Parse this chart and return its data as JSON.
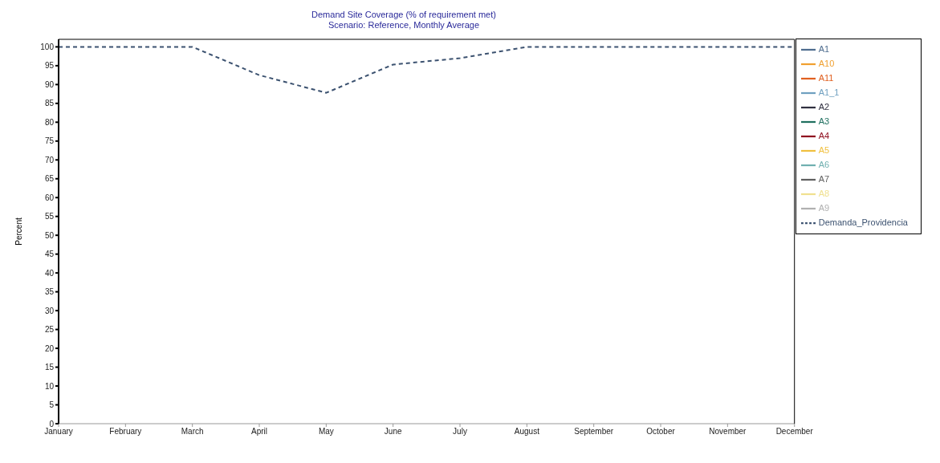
{
  "chart_data": {
    "type": "line",
    "title": "Demand Site Coverage (% of requirement met)",
    "subtitle": "Scenario: Reference,  Monthly Average",
    "ylabel": "Percent",
    "categories": [
      "January",
      "February",
      "March",
      "April",
      "May",
      "June",
      "July",
      "August",
      "September",
      "October",
      "November",
      "December"
    ],
    "ylim": [
      0,
      102
    ],
    "yticks": [
      0,
      5,
      10,
      15,
      20,
      25,
      30,
      35,
      40,
      45,
      50,
      55,
      60,
      65,
      70,
      75,
      80,
      85,
      90,
      95,
      100
    ],
    "grid": false,
    "legend": "top right",
    "marker": "none",
    "series": [
      {
        "name": "A1",
        "color": "#4f6d8f",
        "line_style": "solid",
        "values": [
          null,
          null,
          null,
          null,
          null,
          null,
          null,
          null,
          null,
          null,
          null,
          null
        ]
      },
      {
        "name": "A10",
        "color": "#f0a030",
        "line_style": "solid",
        "values": [
          null,
          null,
          null,
          null,
          null,
          null,
          null,
          null,
          null,
          null,
          null,
          null
        ]
      },
      {
        "name": "A11",
        "color": "#e06020",
        "line_style": "solid",
        "values": [
          null,
          null,
          null,
          null,
          null,
          null,
          null,
          null,
          null,
          null,
          null,
          null
        ]
      },
      {
        "name": "A1_1",
        "color": "#6fa0c0",
        "line_style": "solid",
        "values": [
          null,
          null,
          null,
          null,
          null,
          null,
          null,
          null,
          null,
          null,
          null,
          null
        ]
      },
      {
        "name": "A2",
        "color": "#303040",
        "line_style": "solid",
        "values": [
          null,
          null,
          null,
          null,
          null,
          null,
          null,
          null,
          null,
          null,
          null,
          null
        ]
      },
      {
        "name": "A3",
        "color": "#207060",
        "line_style": "solid",
        "values": [
          null,
          null,
          null,
          null,
          null,
          null,
          null,
          null,
          null,
          null,
          null,
          null
        ]
      },
      {
        "name": "A4",
        "color": "#901020",
        "line_style": "solid",
        "values": [
          null,
          null,
          null,
          null,
          null,
          null,
          null,
          null,
          null,
          null,
          null,
          null
        ]
      },
      {
        "name": "A5",
        "color": "#f0c040",
        "line_style": "solid",
        "values": [
          null,
          null,
          null,
          null,
          null,
          null,
          null,
          null,
          null,
          null,
          null,
          null
        ]
      },
      {
        "name": "A6",
        "color": "#70b0b0",
        "line_style": "solid",
        "values": [
          null,
          null,
          null,
          null,
          null,
          null,
          null,
          null,
          null,
          null,
          null,
          null
        ]
      },
      {
        "name": "A7",
        "color": "#606060",
        "line_style": "solid",
        "values": [
          null,
          null,
          null,
          null,
          null,
          null,
          null,
          null,
          null,
          null,
          null,
          null
        ]
      },
      {
        "name": "A8",
        "color": "#f0e090",
        "line_style": "solid",
        "values": [
          null,
          null,
          null,
          null,
          null,
          null,
          null,
          null,
          null,
          null,
          null,
          null
        ]
      },
      {
        "name": "A9",
        "color": "#b0b0b0",
        "line_style": "solid",
        "values": [
          null,
          null,
          null,
          null,
          null,
          null,
          null,
          null,
          null,
          null,
          null,
          null
        ]
      },
      {
        "name": "Demanda_Providencia",
        "color": "#3c5270",
        "line_style": "dashed",
        "values": [
          100,
          100,
          100,
          92.5,
          87.8,
          95.3,
          97,
          100,
          100,
          100,
          100,
          100
        ]
      }
    ]
  }
}
